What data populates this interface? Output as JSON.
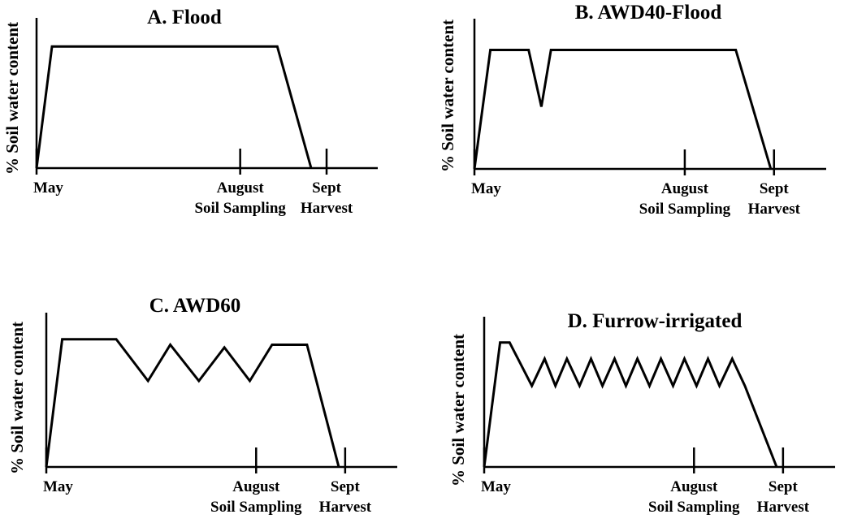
{
  "chart_data": [
    {
      "type": "line",
      "title": "A. Flood",
      "ylabel": "% Soil water content",
      "xlabel": "",
      "ticks": [
        {
          "x": 0,
          "lines": [
            "May"
          ]
        },
        {
          "x": 3.3,
          "lines": [
            "August",
            "Soil Sampling"
          ]
        },
        {
          "x": 4.7,
          "lines": [
            "Sept",
            "Harvest"
          ]
        }
      ],
      "xlim": [
        0,
        5.2
      ],
      "ylim": [
        0,
        100
      ],
      "series": [
        {
          "x": [
            0,
            0.25,
            3.9,
            4.45
          ],
          "y": [
            0,
            90,
            90,
            0
          ]
        }
      ]
    },
    {
      "type": "line",
      "title": "B. AWD40-Flood",
      "ylabel": "% Soil water content",
      "xlabel": "",
      "ticks": [
        {
          "x": 0,
          "lines": [
            "May"
          ]
        },
        {
          "x": 3.3,
          "lines": [
            "August",
            "Soil Sampling"
          ]
        },
        {
          "x": 4.7,
          "lines": [
            "Sept",
            "Harvest"
          ]
        }
      ],
      "xlim": [
        0,
        5.2
      ],
      "ylim": [
        0,
        100
      ],
      "series": [
        {
          "x": [
            0,
            0.25,
            0.85,
            1.05,
            1.2,
            4.1,
            4.65
          ],
          "y": [
            0,
            88,
            88,
            46,
            88,
            88,
            0
          ]
        }
      ]
    },
    {
      "type": "line",
      "title": "C. AWD60",
      "ylabel": "% Soil water content",
      "xlabel": "",
      "ticks": [
        {
          "x": 0,
          "lines": [
            "May"
          ]
        },
        {
          "x": 3.3,
          "lines": [
            "August",
            "Soil Sampling"
          ]
        },
        {
          "x": 4.7,
          "lines": [
            "Sept",
            "Harvest"
          ]
        }
      ],
      "xlim": [
        0,
        5.2
      ],
      "ylim": [
        0,
        100
      ],
      "series": [
        {
          "x": [
            0,
            0.25,
            1.1,
            1.6,
            1.95,
            2.4,
            2.8,
            3.2,
            3.55,
            4.1,
            4.6
          ],
          "y": [
            0,
            92,
            92,
            62,
            88,
            62,
            86,
            62,
            88,
            88,
            0
          ]
        }
      ]
    },
    {
      "type": "line",
      "title": "D. Furrow-irrigated",
      "ylabel": "% Soil water content",
      "xlabel": "",
      "ticks": [
        {
          "x": 0,
          "lines": [
            "May"
          ]
        },
        {
          "x": 3.3,
          "lines": [
            "August",
            "Soil Sampling"
          ]
        },
        {
          "x": 4.7,
          "lines": [
            "Sept",
            "Harvest"
          ]
        }
      ],
      "xlim": [
        0,
        5.2
      ],
      "ylim": [
        0,
        100
      ],
      "series": [
        {
          "x": [
            0,
            0.25,
            0.4,
            0.75,
            0.95,
            1.12,
            1.3,
            1.5,
            1.68,
            1.86,
            2.05,
            2.23,
            2.41,
            2.6,
            2.78,
            2.97,
            3.15,
            3.34,
            3.52,
            3.7,
            3.9,
            4.1,
            4.6
          ],
          "y": [
            0,
            92,
            92,
            60,
            80,
            60,
            80,
            60,
            80,
            60,
            80,
            60,
            80,
            60,
            80,
            60,
            80,
            60,
            80,
            60,
            80,
            60,
            0
          ]
        }
      ]
    }
  ]
}
